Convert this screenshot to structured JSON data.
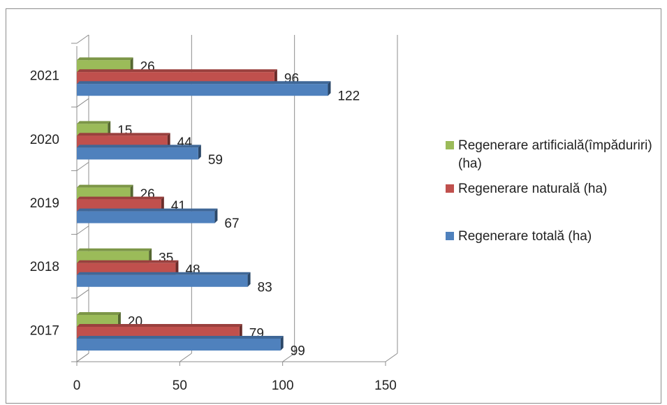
{
  "chart_data": {
    "type": "bar",
    "orientation": "horizontal",
    "style": "3d",
    "categories": [
      "2017",
      "2018",
      "2019",
      "2020",
      "2021"
    ],
    "series": [
      {
        "name": "Regenerare totală (ha)",
        "color": "#4f81bd",
        "values": [
          99,
          83,
          67,
          59,
          122
        ]
      },
      {
        "name": "Regenerare naturală (ha)",
        "color": "#c0504d",
        "values": [
          79,
          48,
          41,
          44,
          96
        ]
      },
      {
        "name": "Regenerare artificială(împăduriri) (ha)",
        "color": "#9bbb59",
        "values": [
          20,
          35,
          26,
          15,
          26
        ]
      }
    ],
    "xlim": [
      0,
      150
    ],
    "xticks": [
      "0",
      "50",
      "100",
      "150"
    ],
    "grid": true,
    "legend_position": "right",
    "data_labels": true
  },
  "legend": {
    "items": [
      {
        "label": "Regenerare artificială(împăduriri) (ha)",
        "color": "#9bbb59"
      },
      {
        "label": "Regenerare naturală (ha)",
        "color": "#c0504d"
      },
      {
        "label": "Regenerare totală (ha)",
        "color": "#4f81bd"
      }
    ]
  }
}
